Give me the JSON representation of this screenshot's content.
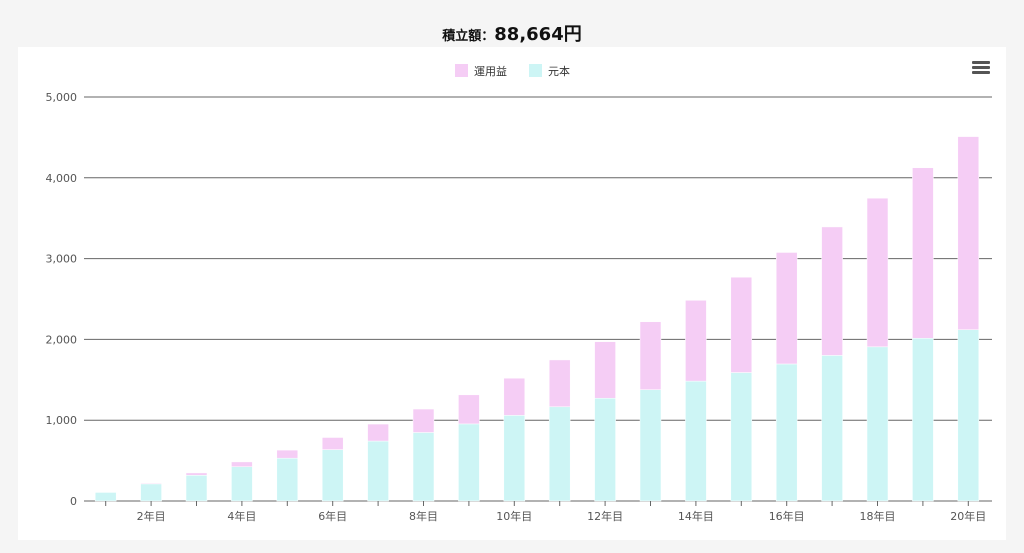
{
  "header": {
    "label": "積立額：",
    "value": "88,664円"
  },
  "colors": {
    "gain": "#f5cdf5",
    "principal": "#cdf5f5",
    "grid": "#666666",
    "axis_text": "#555555"
  },
  "chart_data": {
    "type": "bar",
    "stacked": true,
    "categories": [
      "",
      "2年目",
      "",
      "4年目",
      "",
      "6年目",
      "",
      "8年目",
      "",
      "10年目",
      "",
      "12年目",
      "",
      "14年目",
      "",
      "16年目",
      "",
      "18年目",
      "",
      "20年目"
    ],
    "series": [
      {
        "name": "元本",
        "color": "#cdf5f5",
        "values": [
          106,
          212,
          318,
          424,
          530,
          636,
          742,
          848,
          954,
          1060,
          1166,
          1272,
          1378,
          1484,
          1590,
          1696,
          1802,
          1908,
          2014,
          2120
        ]
      },
      {
        "name": "運用益",
        "color": "#f5cdf5",
        "values": [
          0,
          10,
          30,
          60,
          100,
          150,
          210,
          290,
          360,
          460,
          580,
          700,
          840,
          1000,
          1180,
          1380,
          1590,
          1840,
          2110,
          2390
        ]
      }
    ],
    "legend": [
      "運用益",
      "元本"
    ],
    "legend_position": "top",
    "y_ticks": [
      "0",
      "1,000",
      "2,000",
      "3,000",
      "4,000",
      "5,000"
    ],
    "ylim": [
      0,
      5000
    ],
    "grid": true
  }
}
